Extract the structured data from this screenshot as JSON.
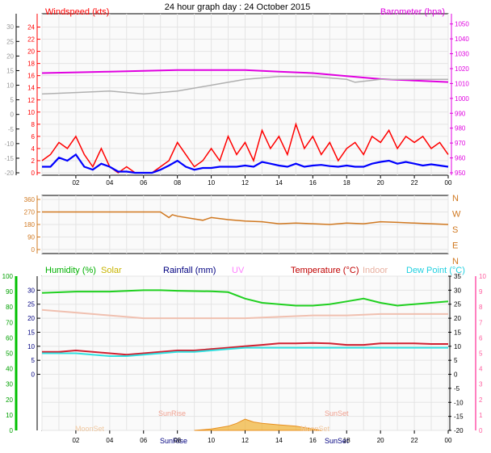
{
  "chart_data": {
    "title": "24 hour graph day : 24 October 2015",
    "type": "line",
    "x_ticks": [
      "02",
      "04",
      "06",
      "08",
      "10",
      "12",
      "14",
      "16",
      "18",
      "20",
      "22",
      "00"
    ],
    "panels": {
      "wind_baro": {
        "left_label": "Windspeed (kts)",
        "right_label": "Barometer (hpa)",
        "outer_left_ticks": [
          "30",
          "25",
          "20",
          "15",
          "10",
          "5",
          "0",
          "-5",
          "-10",
          "-15",
          "-20"
        ],
        "wind_ticks": [
          "24",
          "22",
          "20",
          "18",
          "16",
          "14",
          "12",
          "10",
          "8",
          "6",
          "4",
          "2",
          "0"
        ],
        "baro_ticks": [
          "1050",
          "1040",
          "1030",
          "1020",
          "1010",
          "1000",
          "990",
          "980",
          "970",
          "960",
          "950"
        ],
        "ylim_wind": [
          0,
          25
        ],
        "ylim_baro": [
          950,
          1052
        ],
        "ylim_outer": [
          -20,
          32
        ],
        "series": [
          {
            "key": "barometer",
            "axis": "baro",
            "color": "#e000e0",
            "x": [
              0,
              2,
              4,
              6,
              8,
              10,
              12,
              14,
              16,
              18,
              20,
              22,
              24
            ],
            "values": [
              1017,
              1017.5,
              1018,
              1018.5,
              1019,
              1019,
              1019,
              1018,
              1017,
              1015,
              1013,
              1012,
              1011
            ]
          },
          {
            "key": "grey_trace",
            "axis": "outer",
            "color": "#b0b0b0",
            "x": [
              0,
              2,
              4,
              6,
              8,
              10,
              12,
              14,
              16,
              18,
              18.5,
              20,
              22,
              24
            ],
            "values": [
              7,
              7.5,
              8,
              7,
              8,
              10,
              12,
              13,
              13,
              12,
              11,
              12,
              12,
              12
            ]
          },
          {
            "key": "gust",
            "axis": "wind",
            "color": "#ff0000",
            "x": [
              0,
              0.5,
              1,
              1.5,
              2,
              2.5,
              3,
              3.5,
              4,
              4.5,
              5,
              5.5,
              6,
              6.5,
              7,
              7.5,
              8,
              8.5,
              9,
              9.5,
              10,
              10.5,
              11,
              11.5,
              12,
              12.5,
              13,
              13.5,
              14,
              14.5,
              15,
              15.5,
              16,
              16.5,
              17,
              17.5,
              18,
              18.5,
              19,
              19.5,
              20,
              20.5,
              21,
              21.5,
              22,
              22.5,
              23,
              23.5,
              24
            ],
            "values": [
              2,
              3,
              5,
              4,
              6,
              3,
              1,
              4,
              1,
              0,
              1,
              0,
              0,
              0,
              1,
              2,
              5,
              3,
              1,
              2,
              4,
              2,
              6,
              3,
              5,
              2,
              7,
              4,
              6,
              3,
              8,
              4,
              6,
              3,
              5,
              2,
              4,
              5,
              3,
              6,
              5,
              7,
              4,
              6,
              5,
              6,
              4,
              5,
              3
            ]
          },
          {
            "key": "average",
            "axis": "wind",
            "color": "#0000ff",
            "x": [
              0,
              0.5,
              1,
              1.5,
              2,
              2.5,
              3,
              3.5,
              4,
              4.5,
              5,
              5.5,
              6,
              6.5,
              7,
              7.5,
              8,
              8.5,
              9,
              9.5,
              10,
              10.5,
              11,
              11.5,
              12,
              12.5,
              13,
              13.5,
              14,
              14.5,
              15,
              15.5,
              16,
              16.5,
              17,
              17.5,
              18,
              18.5,
              19,
              19.5,
              20,
              20.5,
              21,
              21.5,
              22,
              22.5,
              23,
              23.5,
              24
            ],
            "values": [
              1,
              1,
              2.5,
              2,
              3,
              1,
              0.5,
              1.5,
              1,
              0.2,
              0.2,
              0,
              0,
              0,
              0.5,
              1.2,
              2,
              1,
              0.5,
              0.8,
              0.8,
              1,
              1,
              1,
              1.2,
              1,
              1.8,
              1.5,
              1.2,
              1,
              1.5,
              1,
              1.2,
              1.3,
              1.1,
              1,
              1.2,
              1,
              1,
              1.5,
              1.8,
              2,
              1.5,
              1.8,
              1.5,
              1.2,
              1.4,
              1.2,
              1
            ]
          }
        ]
      },
      "direction": {
        "left_ticks": [
          "360",
          "270",
          "180",
          "90",
          "0"
        ],
        "right_ticks": [
          "N",
          "W",
          "S",
          "E",
          "N"
        ],
        "ylim": [
          0,
          360
        ],
        "series": [
          {
            "key": "direction",
            "color": "#d07820",
            "x": [
              0,
              1,
              2,
              3,
              4,
              5,
              6,
              7,
              7.5,
              7.7,
              8,
              9,
              9.5,
              10,
              11,
              12,
              13,
              14,
              15,
              16,
              17,
              18,
              19,
              20,
              21,
              22,
              23,
              24
            ],
            "values": [
              270,
              270,
              270,
              270,
              270,
              270,
              270,
              270,
              230,
              250,
              240,
              220,
              210,
              230,
              215,
              205,
              200,
              185,
              190,
              185,
              180,
              190,
              185,
              200,
              195,
              190,
              185,
              180
            ]
          }
        ]
      },
      "temps": {
        "labels": [
          "Humidity (%)",
          "Solar",
          "Rainfall (mm)",
          "UV",
          "Temperature (°C)",
          "Indoor",
          "Dew Point (°C)"
        ],
        "label_colors": [
          "#00b000",
          "#c8b400",
          "#000080",
          "#ff80ff",
          "#c00000",
          "#e8b0a0",
          "#20d0e0"
        ],
        "left_outer_ticks": [
          "100",
          "90",
          "80",
          "70",
          "60",
          "50",
          "40",
          "30",
          "20",
          "10",
          "0"
        ],
        "left_inner_ticks": [
          "30",
          "25",
          "20",
          "15",
          "10",
          "5",
          "0"
        ],
        "right_inner_ticks": [
          "35",
          "30",
          "25",
          "20",
          "15",
          "10",
          "5",
          "0",
          "-5",
          "-10",
          "-15",
          "-20"
        ],
        "right_outer_ticks": [
          "10",
          "9",
          "8",
          "7",
          "6",
          "5",
          "4",
          "3",
          "2",
          "1",
          "0"
        ],
        "ylim_temp": [
          -20,
          35
        ],
        "ylim_hum": [
          0,
          100
        ],
        "annotations": [
          "MoonSet",
          "SunRise",
          "SunRise",
          "SunSet",
          "SunSet",
          "MoonSet"
        ],
        "series": [
          {
            "key": "humidity",
            "axis": "temp",
            "color": "#20d020",
            "x": [
              0,
              2,
              4,
              6,
              7,
              8,
              10,
              11,
              12,
              13,
              14,
              15,
              16,
              17,
              18,
              19,
              20,
              21,
              22,
              23,
              24
            ],
            "values": [
              29,
              29.5,
              29.5,
              30,
              30,
              29.8,
              29.6,
              29.3,
              27,
              25.5,
              25,
              24.5,
              24.5,
              25,
              26,
              27,
              25.5,
              24.5,
              25,
              25.5,
              26
            ]
          },
          {
            "key": "indoor",
            "axis": "temp",
            "color": "#f0c0b0",
            "x": [
              0,
              2,
              4,
              6,
              8,
              10,
              12,
              14,
              16,
              18,
              20,
              22,
              24
            ],
            "values": [
              23,
              22,
              21,
              20,
              20,
              20,
              20,
              20.5,
              21,
              21,
              21.5,
              21.5,
              21.5
            ]
          },
          {
            "key": "temperature",
            "axis": "temp",
            "color": "#d02030",
            "x": [
              0,
              1,
              2,
              3,
              4,
              5,
              6,
              7,
              8,
              9,
              10,
              11,
              12,
              13,
              14,
              15,
              16,
              17,
              18,
              19,
              20,
              21,
              22,
              23,
              24
            ],
            "values": [
              8,
              8,
              8.5,
              8,
              7.5,
              7,
              7.5,
              8,
              8.5,
              8.5,
              9,
              9.5,
              10,
              10.5,
              11,
              11,
              11.2,
              11,
              10.5,
              10.5,
              11,
              11,
              11,
              10.8,
              10.8
            ]
          },
          {
            "key": "dewpoint",
            "axis": "temp",
            "color": "#30e0e0",
            "x": [
              0,
              1,
              2,
              3,
              4,
              5,
              6,
              7,
              8,
              9,
              10,
              11,
              12,
              13,
              14,
              15,
              16,
              17,
              18,
              19,
              20,
              21,
              22,
              23,
              24
            ],
            "values": [
              7.5,
              7.5,
              7.5,
              7,
              6.5,
              6.5,
              7,
              7.5,
              8,
              8,
              8.5,
              9,
              9.5,
              9.5,
              9.5,
              9.5,
              9.5,
              9.5,
              9.5,
              9.5,
              9.5,
              9.5,
              9.5,
              9.5,
              9.5
            ]
          },
          {
            "key": "solar",
            "axis": "temp",
            "color": "#f0b030",
            "x": [
              9,
              10,
              10.5,
              11,
              11.5,
              12,
              12.5,
              13,
              14,
              15,
              15.5,
              16,
              16.5
            ],
            "values": [
              -20,
              -19.5,
              -19,
              -18.5,
              -17.5,
              -16,
              -17,
              -17.5,
              -18,
              -18.5,
              -19,
              -19.5,
              -20
            ]
          }
        ]
      }
    }
  }
}
